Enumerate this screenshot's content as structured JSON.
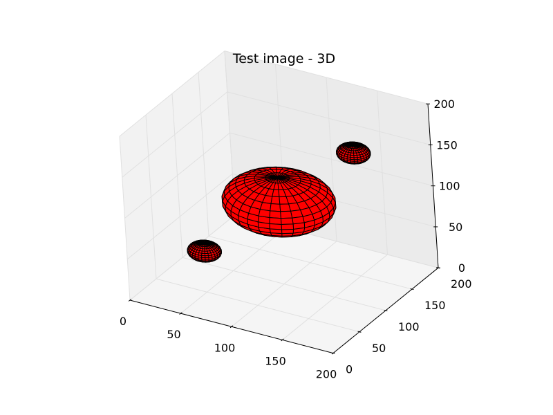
{
  "chart_data": {
    "type": "scatter",
    "projection": "3d",
    "title": "Test image - 3D",
    "xlabel": "",
    "ylabel": "",
    "zlabel": "",
    "xlim": [
      0,
      200
    ],
    "ylim": [
      0,
      200
    ],
    "zlim": [
      0,
      200
    ],
    "xticks": [
      "0",
      "50",
      "100",
      "150",
      "200"
    ],
    "yticks": [
      "0",
      "50",
      "100",
      "150",
      "200"
    ],
    "zticks": [
      "0",
      "50",
      "100",
      "150",
      "200"
    ],
    "grid": true,
    "legend": "none",
    "series": [
      {
        "kind": "ellipsoid-surface",
        "color": "#ff0000",
        "edgecolor": "#000000",
        "objects": [
          {
            "center": [
              100,
              100,
              100
            ],
            "radii": [
              50,
              50,
              30
            ]
          },
          {
            "center": [
              50,
              50,
              50
            ],
            "radii": [
              15,
              15,
              10
            ]
          },
          {
            "center": [
              150,
              150,
              150
            ],
            "radii": [
              15,
              15,
              10
            ]
          }
        ]
      }
    ]
  }
}
